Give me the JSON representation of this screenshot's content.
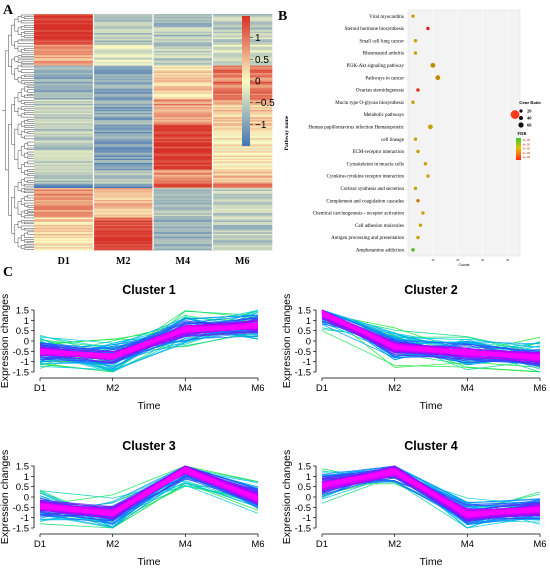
{
  "chart_data": [
    {
      "panel": "A",
      "type": "heatmap",
      "columns": [
        "D1",
        "M2",
        "M4",
        "M6"
      ],
      "colorbar_ticks": [
        "1",
        "0.5",
        "0",
        "−0.5",
        "−1"
      ],
      "colorbar_values": [
        1,
        0.5,
        0,
        -0.5,
        -1
      ],
      "color_range": [
        -1.5,
        1.5
      ],
      "colors": {
        "low": "#4575b4",
        "mid": "#fdfcc4",
        "high": "#d73027"
      },
      "blocks": [
        {
          "from": 0.0,
          "to": 0.13,
          "values": [
            1.45,
            -0.55,
            -0.6,
            -0.5
          ]
        },
        {
          "from": 0.13,
          "to": 0.22,
          "values": [
            0.6,
            -0.2,
            -0.5,
            -0.35
          ]
        },
        {
          "from": 0.22,
          "to": 0.36,
          "values": [
            -0.85,
            -0.95,
            0.3,
            0.95
          ]
        },
        {
          "from": 0.36,
          "to": 0.47,
          "values": [
            -0.5,
            -0.9,
            0.7,
            0.4
          ]
        },
        {
          "from": 0.47,
          "to": 0.66,
          "values": [
            -0.55,
            -1.0,
            1.45,
            0.15
          ]
        },
        {
          "from": 0.66,
          "to": 0.72,
          "values": [
            -0.6,
            -0.6,
            0.7,
            0.5
          ]
        },
        {
          "from": 0.72,
          "to": 0.735,
          "values": [
            -1.4,
            -1.3,
            1.2,
            1.2
          ]
        },
        {
          "from": 0.735,
          "to": 0.86,
          "values": [
            0.7,
            0.4,
            -0.6,
            -0.5
          ]
        },
        {
          "from": 0.86,
          "to": 1.0,
          "values": [
            0.2,
            1.3,
            -0.85,
            -0.55
          ]
        }
      ]
    },
    {
      "panel": "B",
      "type": "scatter",
      "ylabel": "Pathway name",
      "xlabel": "Counts",
      "xlim": [
        0,
        45
      ],
      "x_ticks": [
        10,
        20,
        30,
        40
      ],
      "legend_size_title": "Gene Ratio",
      "legend_size_labels": [
        "20",
        "40",
        "60"
      ],
      "legend_color_title": "FDR",
      "legend_color_labels": [
        "5e-05",
        "4e-05",
        "3e-05",
        "2e-05",
        "1e-05"
      ],
      "categories": [
        "Viral myocarditis",
        "Steroid hormone biosynthesis",
        "Small cell lung cancer",
        "Rheumatoid arthritis",
        "PI3K-Akt signaling pathway",
        "Pathways in cancer",
        "Ovarian steroidogenesis",
        "Mucin type O-glycan biosynthesis",
        "Metabolic pathways",
        "Human papillomavirus infection Hematopoietic",
        "cell lineage",
        "ECM-receptor interaction",
        "Cytoskeleton in muscle cells",
        "Cytokine-cytokine receptor interaction",
        "Cortisol synthesis and secretion",
        "Complement and coagulation cascades",
        "Chemical carcinogenesis - receptor activation",
        "Cell adhesion molecules",
        "Antigen processing and presentation",
        "Amphetamine addiction"
      ],
      "counts": [
        2,
        8,
        3,
        3,
        10,
        12,
        4,
        2,
        43,
        9,
        3,
        4,
        7,
        8,
        3,
        4,
        6,
        5,
        4,
        2
      ],
      "fdr_colors": [
        "#c8a000",
        "#e81c1c",
        "#c8a000",
        "#c8a000",
        "#c08a00",
        "#c08a00",
        "#e03010",
        "#c8a000",
        "#ff3a1a",
        "#c8a000",
        "#c8a000",
        "#c8a000",
        "#c8a000",
        "#c8a000",
        "#c8a000",
        "#d07000",
        "#c8a000",
        "#c8a000",
        "#c8a000",
        "#40c020"
      ]
    },
    {
      "panel": "C",
      "type": "line",
      "x": [
        "D1",
        "M2",
        "M4",
        "M6"
      ],
      "xlabel": "Time",
      "ylabel": "Expression changes",
      "ylim": [
        -1.5,
        1.5
      ],
      "yticks": [
        "1.5",
        "1",
        "0.5",
        "0",
        "-0.5",
        "-1",
        "-1.5"
      ],
      "clusters": [
        {
          "title": "Cluster 1",
          "center": [
            -0.5,
            -0.75,
            0.55,
            0.75
          ]
        },
        {
          "title": "Cluster 2",
          "center": [
            1.35,
            -0.3,
            -0.55,
            -0.8
          ]
        },
        {
          "title": "Cluster 3",
          "center": [
            -0.45,
            -0.8,
            1.3,
            -0.05
          ]
        },
        {
          "title": "Cluster 4",
          "center": [
            0.55,
            1.25,
            -0.85,
            -0.6
          ]
        }
      ]
    }
  ],
  "panel_labels": {
    "a": "A",
    "b": "B",
    "c": "C"
  }
}
